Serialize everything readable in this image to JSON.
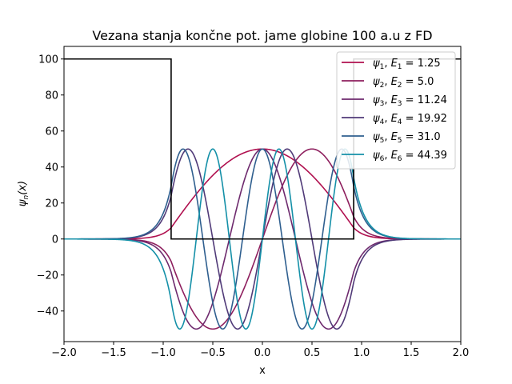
{
  "chart_data": {
    "type": "line",
    "title": "Vezana stanja končne pot. jame globine 100 a.u z FD",
    "xlabel": "x",
    "ylabel": "ψn(x)",
    "xlim": [
      -2.0,
      2.0
    ],
    "ylim": [
      -57,
      107
    ],
    "xticks": [
      -2.0,
      -1.5,
      -1.0,
      -0.5,
      0.0,
      0.5,
      1.0,
      1.5,
      2.0
    ],
    "xtick_labels": [
      "−2.0",
      "−1.5",
      "−1.0",
      "−0.5",
      "0.0",
      "0.5",
      "1.0",
      "1.5",
      "2.0"
    ],
    "yticks": [
      -40,
      -20,
      0,
      20,
      40,
      60,
      80,
      100
    ],
    "ytick_labels": [
      "−40",
      "−20",
      "0",
      "20",
      "40",
      "60",
      "80",
      "100"
    ],
    "grid": false,
    "legend_position": "top-right",
    "potential": {
      "name": "potential",
      "color": "#000000",
      "x": [
        -2.0,
        -0.92,
        -0.92,
        0.92,
        0.92,
        2.0
      ],
      "y": [
        100,
        100,
        0,
        0,
        100,
        100
      ]
    },
    "series": [
      {
        "label_sub": "1",
        "energy": "1.25",
        "n": 1,
        "color": "#b0104f"
      },
      {
        "label_sub": "2",
        "energy": "5.0",
        "n": 2,
        "color": "#8e1f5e"
      },
      {
        "label_sub": "3",
        "energy": "11.24",
        "n": 3,
        "color": "#6e2a6e"
      },
      {
        "label_sub": "4",
        "energy": "19.92",
        "n": 4,
        "color": "#503a78"
      },
      {
        "label_sub": "5",
        "energy": "31.0",
        "n": 5,
        "color": "#2f5f8f"
      },
      {
        "label_sub": "6",
        "energy": "44.39",
        "n": 6,
        "color": "#1490a8"
      }
    ],
    "amplitude": 50,
    "well_half_width": 0.92
  }
}
